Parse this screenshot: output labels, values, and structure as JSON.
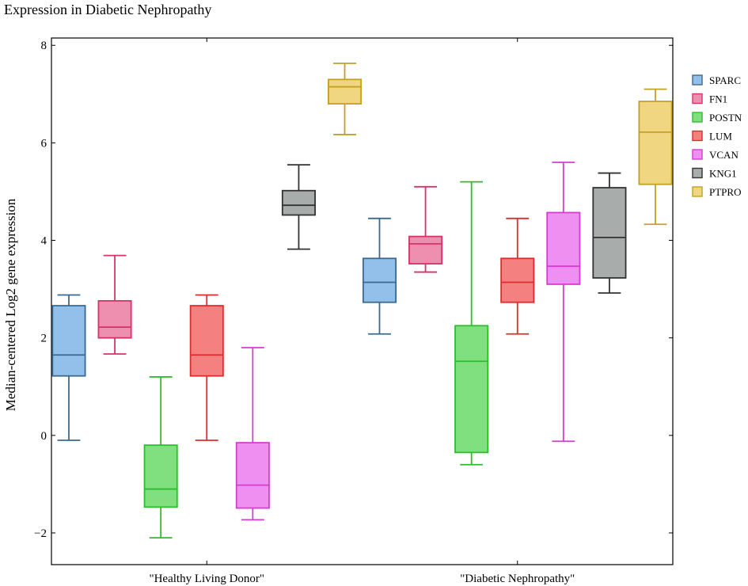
{
  "chart_data": {
    "type": "boxplot",
    "title": "Expression in Diabetic Nephropathy",
    "xlabel": "",
    "ylabel": "Median-centered Log2 gene expression",
    "ylim": [
      -2.65,
      8.15
    ],
    "yticks": [
      -2,
      0,
      2,
      4,
      6,
      8
    ],
    "grid": false,
    "legend_position": "outside top-right",
    "categories": [
      "\"Healthy Living Donor\"",
      "\"Diabetic Nephropathy\""
    ],
    "series": [
      {
        "name": "SPARC",
        "color": "#3a6a92",
        "fill": "#93c0ea",
        "boxes": [
          {
            "min": -0.1,
            "q1": 1.22,
            "median": 1.65,
            "q3": 2.66,
            "max": 2.88
          },
          {
            "min": 2.08,
            "q1": 2.73,
            "median": 3.14,
            "q3": 3.63,
            "max": 4.45
          }
        ]
      },
      {
        "name": "FN1",
        "color": "#d6336b",
        "fill": "#ee8fb0",
        "boxes": [
          {
            "min": 1.67,
            "q1": 2.0,
            "median": 2.22,
            "q3": 2.76,
            "max": 3.69
          },
          {
            "min": 3.35,
            "q1": 3.52,
            "median": 3.93,
            "q3": 4.08,
            "max": 5.1
          }
        ]
      },
      {
        "name": "POSTN",
        "color": "#2ebd2e",
        "fill": "#80e080",
        "boxes": [
          {
            "min": -2.1,
            "q1": -1.47,
            "median": -1.1,
            "q3": -0.2,
            "max": 1.2
          },
          {
            "min": -0.6,
            "q1": -0.35,
            "median": 1.52,
            "q3": 2.25,
            "max": 5.2
          }
        ]
      },
      {
        "name": "LUM",
        "color": "#e02c2c",
        "fill": "#f48080",
        "boxes": [
          {
            "min": -0.1,
            "q1": 1.22,
            "median": 1.65,
            "q3": 2.66,
            "max": 2.88
          },
          {
            "min": 2.08,
            "q1": 2.73,
            "median": 3.14,
            "q3": 3.63,
            "max": 4.45
          }
        ]
      },
      {
        "name": "VCAN",
        "color": "#d63bd6",
        "fill": "#ef8ff2",
        "boxes": [
          {
            "min": -1.73,
            "q1": -1.49,
            "median": -1.02,
            "q3": -0.15,
            "max": 1.8
          },
          {
            "min": -0.12,
            "q1": 3.1,
            "median": 3.47,
            "q3": 4.57,
            "max": 5.6
          }
        ]
      },
      {
        "name": "KNG1",
        "color": "#333333",
        "fill": "#a8adab",
        "boxes": [
          {
            "min": 3.82,
            "q1": 4.52,
            "median": 4.72,
            "q3": 5.02,
            "max": 5.55
          },
          {
            "min": 2.92,
            "q1": 3.23,
            "median": 4.06,
            "q3": 5.08,
            "max": 5.38
          }
        ]
      },
      {
        "name": "PTPRO",
        "color": "#c4a024",
        "fill": "#f0d680",
        "boxes": [
          {
            "min": 6.17,
            "q1": 6.8,
            "median": 7.15,
            "q3": 7.3,
            "max": 7.63
          },
          {
            "min": 4.33,
            "q1": 5.15,
            "median": 6.22,
            "q3": 6.85,
            "max": 7.1
          }
        ]
      }
    ]
  }
}
